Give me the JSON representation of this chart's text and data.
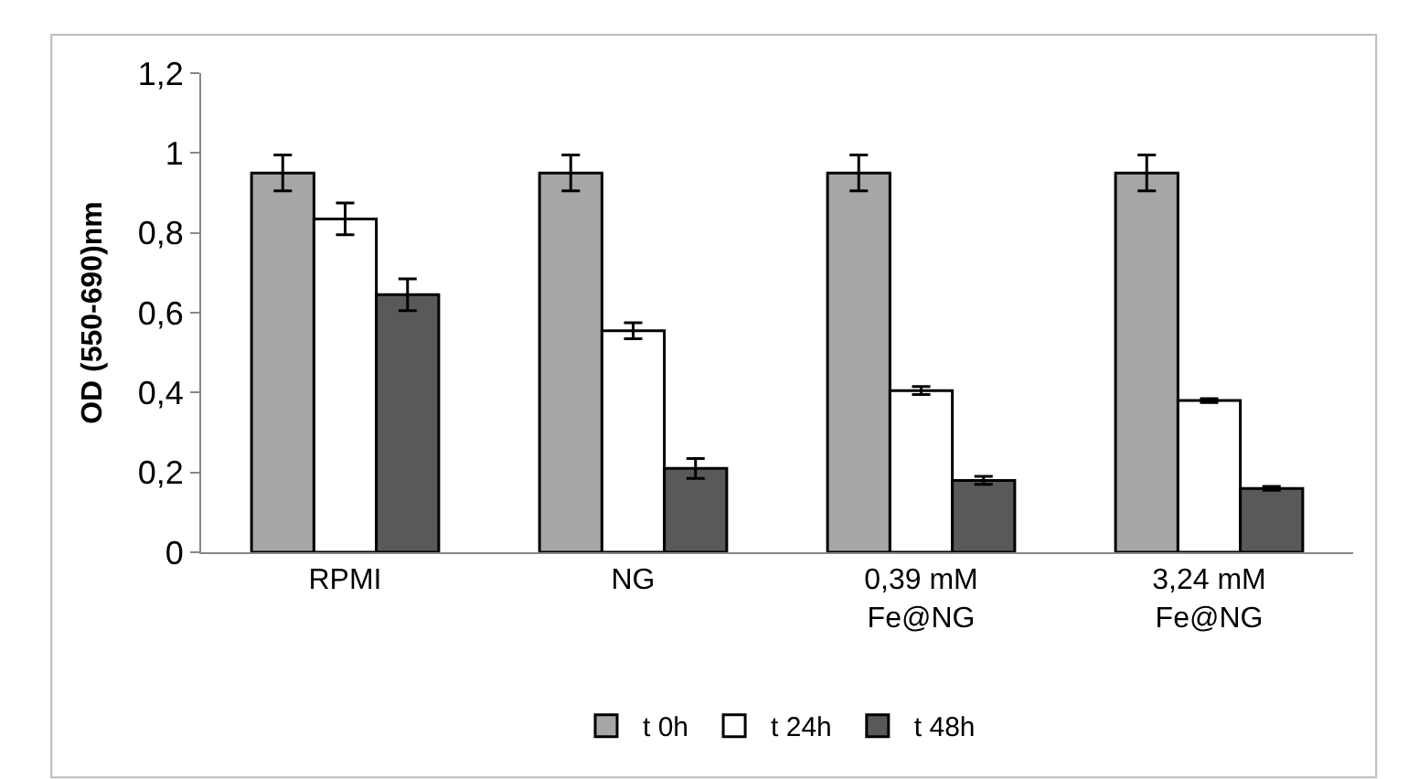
{
  "chart_data": {
    "type": "bar",
    "ylabel": "OD (550-690)nm",
    "categories": [
      "RPMI",
      "NG",
      "0,39 mM Fe@NG",
      "3,24 mM Fe@NG"
    ],
    "series": [
      {
        "name": "t 0h",
        "color": "#a6a6a6",
        "values": [
          0.95,
          0.95,
          0.95,
          0.95
        ],
        "errors": [
          0.045,
          0.045,
          0.045,
          0.045
        ]
      },
      {
        "name": "t 24h",
        "color": "#ffffff",
        "values": [
          0.835,
          0.555,
          0.405,
          0.38
        ],
        "errors": [
          0.04,
          0.02,
          0.01,
          0.005
        ]
      },
      {
        "name": "t 48h",
        "color": "#595959",
        "values": [
          0.645,
          0.21,
          0.18,
          0.16
        ],
        "errors": [
          0.04,
          0.025,
          0.01,
          0.005
        ]
      }
    ],
    "ylim": [
      0,
      1.2
    ],
    "yticks": [
      0,
      {
        "value": 0.2,
        "label": "0,2"
      },
      {
        "value": 0.4,
        "label": "0,4"
      },
      {
        "value": 0.6,
        "label": "0,6"
      },
      {
        "value": 0.8,
        "label": "0,8"
      },
      1,
      {
        "value": 1.2,
        "label": "1,2"
      }
    ],
    "legend": "bottom"
  }
}
